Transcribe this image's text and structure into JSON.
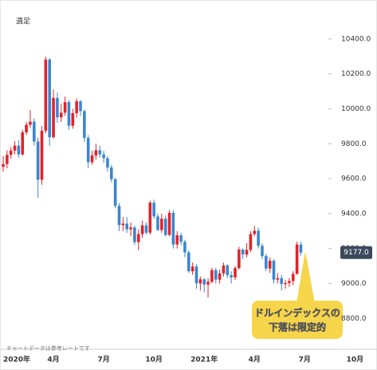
{
  "chart_data": {
    "type": "candlestick",
    "period_label": "週足",
    "footnote": "チャートデータは参考レートです",
    "annotation": [
      "ドルインデックスの",
      "下落は限定的"
    ],
    "last_price": {
      "value": 9177,
      "label": "9177.0"
    },
    "up_color": "#e0232a",
    "down_color": "#3b86d0",
    "categories": [
      "2020年",
      null,
      null,
      null,
      null,
      null,
      null,
      null,
      null,
      null,
      null,
      null,
      null,
      "4月",
      null,
      null,
      null,
      null,
      null,
      null,
      null,
      null,
      null,
      null,
      null,
      null,
      "7月",
      null,
      null,
      null,
      null,
      null,
      null,
      null,
      null,
      null,
      null,
      null,
      null,
      "10月",
      null,
      null,
      null,
      null,
      null,
      null,
      null,
      null,
      null,
      null,
      null,
      null,
      "2021年",
      null,
      null,
      null,
      null,
      null,
      null,
      null,
      null,
      null,
      null,
      null,
      null,
      "4月",
      null,
      null,
      null,
      null,
      null,
      null,
      null,
      null,
      null,
      null,
      null,
      null,
      "7月",
      null,
      null,
      null,
      null,
      null,
      null,
      null,
      null,
      null,
      null,
      null,
      null,
      "10月"
    ],
    "open": [
      9668,
      9684,
      9736,
      9761,
      9789,
      9739,
      9865,
      9909,
      9926,
      9813,
      9594,
      9874,
      10282,
      9837,
      10062,
      9951,
      9978,
      10038,
      9903,
      9975,
      10043,
      9987,
      9834,
      9694,
      9733,
      9763,
      9739,
      9717,
      9664,
      9597,
      9444,
      9334,
      9343,
      9310,
      9321,
      9237,
      9283,
      9333,
      9291,
      9463,
      9384,
      9306,
      9371,
      9278,
      9404,
      9223,
      9276,
      9239,
      9178,
      9070,
      9097,
      9001,
      9024,
      8994,
      9010,
      9077,
      9022,
      9058,
      9103,
      9048,
      9035,
      9088,
      9194,
      9166,
      9192,
      9283,
      9302,
      9216,
      9157,
      9086,
      9130,
      9022,
      9031,
      8997,
      9003,
      9014,
      9055,
      9223,
      null,
      null,
      null,
      null,
      null,
      null,
      null,
      null,
      null,
      null,
      null,
      null,
      null,
      null
    ],
    "high": [
      9730,
      9762,
      9780,
      9815,
      9820,
      9880,
      9925,
      9993,
      9945,
      9835,
      9900,
      10299,
      10290,
      10111,
      10093,
      10030,
      10070,
      10050,
      10000,
      10060,
      10050,
      9995,
      9850,
      9760,
      9800,
      9790,
      9760,
      9730,
      9680,
      9605,
      9460,
      9380,
      9380,
      9350,
      9330,
      9310,
      9360,
      9350,
      9475,
      9480,
      9400,
      9400,
      9390,
      9420,
      9420,
      9300,
      9290,
      9250,
      9190,
      9120,
      9110,
      9040,
      9030,
      9030,
      9090,
      9090,
      9080,
      9120,
      9110,
      9070,
      9100,
      9210,
      9200,
      9230,
      9300,
      9330,
      9320,
      9230,
      9170,
      9150,
      9140,
      9060,
      9050,
      9020,
      9030,
      9070,
      9240,
      9240,
      null,
      null,
      null,
      null,
      null,
      null,
      null,
      null,
      null,
      null,
      null,
      null,
      null,
      null
    ],
    "low": [
      9640,
      9660,
      9715,
      9740,
      9720,
      9730,
      9850,
      9890,
      9790,
      9491,
      9565,
      9860,
      9789,
      9830,
      9920,
      9925,
      9960,
      9880,
      9885,
      9950,
      9960,
      9810,
      9660,
      9680,
      9710,
      9720,
      9690,
      9640,
      9580,
      9430,
      9300,
      9300,
      9290,
      9270,
      9220,
      9190,
      9260,
      9280,
      9280,
      9370,
      9300,
      9290,
      9270,
      9270,
      9200,
      9200,
      9220,
      9150,
      9060,
      9050,
      8970,
      8960,
      8950,
      8920,
      9000,
      9000,
      9000,
      9040,
      9030,
      9000,
      9020,
      9080,
      9140,
      9150,
      9180,
      9270,
      9200,
      9140,
      9070,
      9060,
      9000,
      9000,
      8960,
      8970,
      8980,
      8990,
      9050,
      9160,
      null,
      null,
      null,
      null,
      null,
      null,
      null,
      null,
      null,
      null,
      null,
      null,
      null,
      null
    ],
    "close": [
      9684,
      9736,
      9761,
      9789,
      9739,
      9865,
      9909,
      9926,
      9813,
      9594,
      9874,
      10282,
      9837,
      10062,
      9951,
      9978,
      10038,
      9903,
      9975,
      10043,
      9987,
      9834,
      9694,
      9733,
      9763,
      9739,
      9717,
      9664,
      9597,
      9444,
      9334,
      9343,
      9310,
      9321,
      9237,
      9283,
      9333,
      9291,
      9463,
      9384,
      9306,
      9371,
      9278,
      9404,
      9223,
      9276,
      9239,
      9178,
      9070,
      9097,
      9001,
      9024,
      8994,
      9010,
      9077,
      9022,
      9058,
      9103,
      9048,
      9035,
      9088,
      9194,
      9166,
      9192,
      9283,
      9302,
      9216,
      9157,
      9086,
      9130,
      9022,
      9031,
      8997,
      9003,
      9014,
      9055,
      9223,
      9177,
      null,
      null,
      null,
      null,
      null,
      null,
      null,
      null,
      null,
      null,
      null,
      null,
      null,
      null
    ],
    "ylim": [
      8660,
      10600
    ],
    "yticks": [
      {
        "value": 8800,
        "label": "8800.0"
      },
      {
        "value": 9000,
        "label": "9000.0"
      },
      {
        "value": 9200,
        "label": "9200.0"
      },
      {
        "value": 9400,
        "label": "9400.0"
      },
      {
        "value": 9600,
        "label": "9600.0"
      },
      {
        "value": 9800,
        "label": "9800.0"
      },
      {
        "value": 10000,
        "label": "10000.0"
      },
      {
        "value": 10200,
        "label": "10200.0"
      },
      {
        "value": 10400,
        "label": "10400.0"
      }
    ],
    "grid": false
  }
}
